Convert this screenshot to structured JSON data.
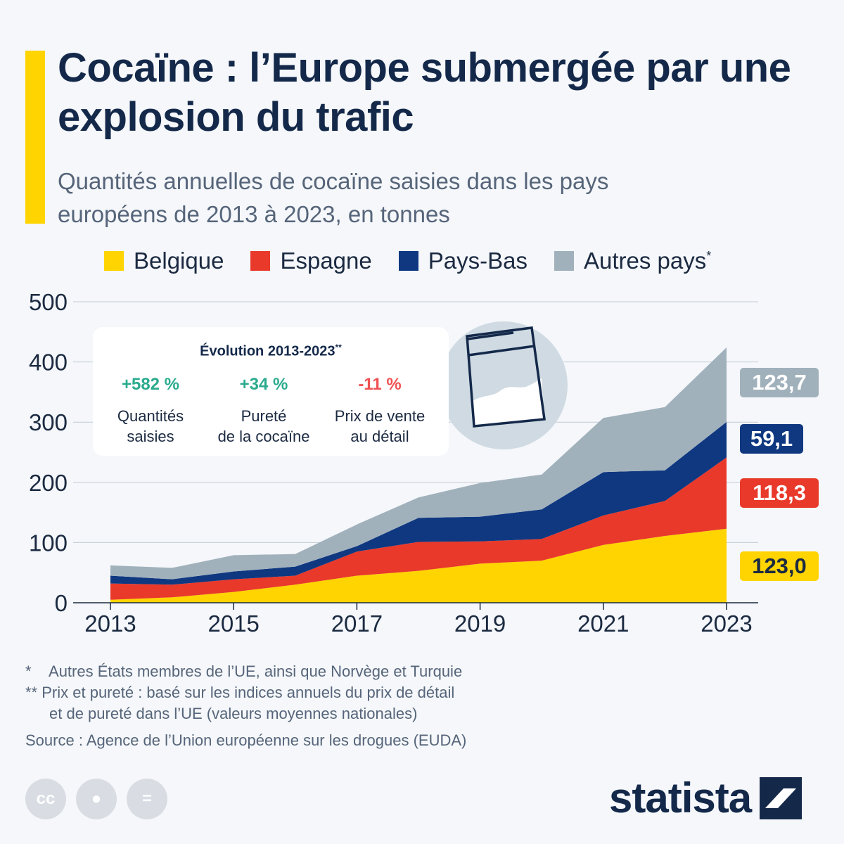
{
  "title": "Cocaïne : l’Europe submergée par une explosion du trafic",
  "subtitle": "Quantités annuelles de cocaïne saisies dans les pays européens de 2013 à 2023, en tonnes",
  "legend": [
    {
      "label": "Belgique",
      "color": "#ffd400"
    },
    {
      "label": "Espagne",
      "color": "#e8392b"
    },
    {
      "label": "Pays-Bas",
      "color": "#0f3880"
    },
    {
      "label": "Autres pays",
      "color": "#a1b1bc",
      "marker": "*"
    }
  ],
  "info_box": {
    "title": "Évolution 2013-2023",
    "title_marker": "**",
    "items": [
      {
        "value": "+582 %",
        "label_line1": "Quantités",
        "label_line2": "saisies",
        "trend": "positive"
      },
      {
        "value": "+34 %",
        "label_line1": "Pureté",
        "label_line2": "de la cocaïne",
        "trend": "positive"
      },
      {
        "value": "-11 %",
        "label_line1": "Prix de vente",
        "label_line2": "au détail",
        "trend": "negative"
      }
    ]
  },
  "end_labels": [
    {
      "text": "123,7",
      "bg": "#a1b1bc",
      "fg": "#ffffff"
    },
    {
      "text": "59,1",
      "bg": "#0f3880",
      "fg": "#ffffff"
    },
    {
      "text": "118,3",
      "bg": "#e8392b",
      "fg": "#ffffff"
    },
    {
      "text": "123,0",
      "bg": "#ffd400",
      "fg": "#1b2a41"
    }
  ],
  "footnotes": {
    "note1_marker": "*",
    "note1": "Autres États membres de l’UE, ainsi que Norvège et Turquie",
    "note2_marker": "**",
    "note2_line1": "Prix et pureté : basé sur les indices annuels du prix de détail",
    "note2_line2": "et de pureté dans l’UE (valeurs moyennes nationales)",
    "source": "Source : Agence de l’Union européenne sur les drogues (EUDA)"
  },
  "brand": "statista",
  "cc_icons": [
    "cc-icon",
    "attribution-icon",
    "no-derivatives-icon"
  ],
  "chart_data": {
    "type": "area",
    "stacked": true,
    "x": [
      2013,
      2014,
      2015,
      2016,
      2017,
      2018,
      2019,
      2020,
      2021,
      2022,
      2023
    ],
    "xticks": [
      "2013",
      "2015",
      "2017",
      "2019",
      "2021",
      "2023"
    ],
    "yticks": [
      "0",
      "100",
      "200",
      "300",
      "400",
      "500"
    ],
    "ylim": [
      0,
      500
    ],
    "grid": true,
    "series": [
      {
        "name": "Belgique",
        "color": "#ffd400",
        "values": [
          5,
          9,
          18,
          30,
          45,
          53,
          65,
          70,
          96,
          111,
          123.0
        ]
      },
      {
        "name": "Espagne",
        "color": "#e8392b",
        "values": [
          27,
          21,
          21,
          15,
          40,
          48,
          37,
          36,
          49,
          58,
          118.3
        ]
      },
      {
        "name": "Pays-Bas",
        "color": "#0f3880",
        "values": [
          13,
          9,
          13,
          15,
          9,
          40,
          41,
          49,
          72,
          51,
          59.1
        ]
      },
      {
        "name": "Autres pays",
        "color": "#a1b1bc",
        "values": [
          17,
          19,
          27,
          21,
          36,
          34,
          56,
          58,
          90,
          105,
          123.7
        ]
      }
    ]
  }
}
